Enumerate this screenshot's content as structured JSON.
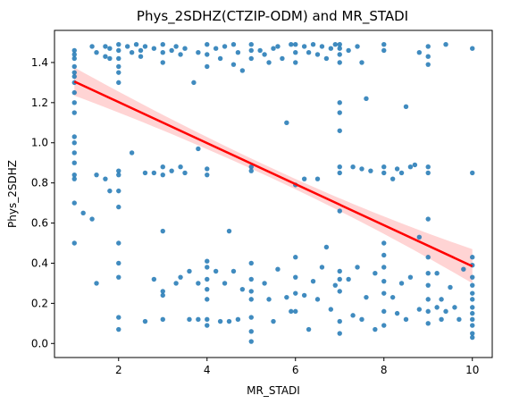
{
  "chart_data": {
    "type": "scatter",
    "title": "Phys_2SDHZ(CTZIP-ODM) and MR_STADI",
    "xlabel": "MR_STADI",
    "ylabel": "Phys_2SDHZ",
    "xlim": [
      0.55,
      10.45
    ],
    "ylim": [
      -0.07,
      1.56
    ],
    "x_ticks": [
      2,
      4,
      6,
      8,
      10
    ],
    "y_ticks": [
      0.0,
      0.2,
      0.4,
      0.6,
      0.8,
      1.0,
      1.2,
      1.4
    ],
    "grid": false,
    "point_color": "#1f77b4",
    "regression": {
      "color": "#ff0000",
      "band_color": "#ffcccc",
      "x": [
        1,
        10
      ],
      "y": [
        1.305,
        0.385
      ],
      "ci_half_width_start": 0.07,
      "ci_half_width_mid": 0.025,
      "ci_half_width_end": 0.085
    },
    "points": [
      [
        1,
        1.46
      ],
      [
        1,
        1.44
      ],
      [
        1,
        1.42
      ],
      [
        1,
        1.38
      ],
      [
        1,
        1.35
      ],
      [
        1,
        1.33
      ],
      [
        1,
        1.3
      ],
      [
        1,
        1.25
      ],
      [
        1,
        1.2
      ],
      [
        1,
        1.15
      ],
      [
        1,
        1.03
      ],
      [
        1,
        1.0
      ],
      [
        1,
        0.95
      ],
      [
        1,
        0.9
      ],
      [
        1,
        0.84
      ],
      [
        1,
        0.82
      ],
      [
        1,
        0.7
      ],
      [
        1,
        0.5
      ],
      [
        1.2,
        0.65
      ],
      [
        1.4,
        1.48
      ],
      [
        1.4,
        0.62
      ],
      [
        1.5,
        1.45
      ],
      [
        1.5,
        0.84
      ],
      [
        1.5,
        0.3
      ],
      [
        1.7,
        1.48
      ],
      [
        1.7,
        1.43
      ],
      [
        1.7,
        0.82
      ],
      [
        1.8,
        1.47
      ],
      [
        1.8,
        1.42
      ],
      [
        1.8,
        0.76
      ],
      [
        2,
        1.49
      ],
      [
        2,
        1.46
      ],
      [
        2,
        1.42
      ],
      [
        2,
        1.38
      ],
      [
        2,
        1.35
      ],
      [
        2,
        1.3
      ],
      [
        2,
        0.86
      ],
      [
        2,
        0.84
      ],
      [
        2,
        0.76
      ],
      [
        2,
        0.68
      ],
      [
        2,
        0.5
      ],
      [
        2,
        0.4
      ],
      [
        2,
        0.33
      ],
      [
        2,
        0.13
      ],
      [
        2,
        0.07
      ],
      [
        2.2,
        1.48
      ],
      [
        2.3,
        1.45
      ],
      [
        2.3,
        0.95
      ],
      [
        2.4,
        1.49
      ],
      [
        2.5,
        1.46
      ],
      [
        2.5,
        1.43
      ],
      [
        2.6,
        1.48
      ],
      [
        2.6,
        0.85
      ],
      [
        2.6,
        0.11
      ],
      [
        2.8,
        1.47
      ],
      [
        2.8,
        0.85
      ],
      [
        2.8,
        0.32
      ],
      [
        3,
        1.49
      ],
      [
        3,
        1.45
      ],
      [
        3,
        1.4
      ],
      [
        3,
        0.88
      ],
      [
        3,
        0.84
      ],
      [
        3,
        0.56
      ],
      [
        3,
        0.26
      ],
      [
        3,
        0.24
      ],
      [
        3,
        0.12
      ],
      [
        3.2,
        1.46
      ],
      [
        3.2,
        0.86
      ],
      [
        3.3,
        1.48
      ],
      [
        3.3,
        0.3
      ],
      [
        3.4,
        1.44
      ],
      [
        3.4,
        0.88
      ],
      [
        3.4,
        0.33
      ],
      [
        3.5,
        1.47
      ],
      [
        3.5,
        0.85
      ],
      [
        3.6,
        0.36
      ],
      [
        3.6,
        0.12
      ],
      [
        3.7,
        1.3
      ],
      [
        3.8,
        1.45
      ],
      [
        3.8,
        0.97
      ],
      [
        3.8,
        0.3
      ],
      [
        3.8,
        0.12
      ],
      [
        4,
        1.49
      ],
      [
        4,
        1.44
      ],
      [
        4,
        1.38
      ],
      [
        4,
        0.87
      ],
      [
        4,
        0.84
      ],
      [
        4,
        0.41
      ],
      [
        4,
        0.38
      ],
      [
        4,
        0.32
      ],
      [
        4,
        0.27
      ],
      [
        4,
        0.22
      ],
      [
        4,
        0.12
      ],
      [
        4,
        0.09
      ],
      [
        4.2,
        1.47
      ],
      [
        4.2,
        0.36
      ],
      [
        4.3,
        1.42
      ],
      [
        4.3,
        0.11
      ],
      [
        4.4,
        1.48
      ],
      [
        4.4,
        0.3
      ],
      [
        4.5,
        0.11
      ],
      [
        4.5,
        0.56
      ],
      [
        4.6,
        1.49
      ],
      [
        4.6,
        1.39
      ],
      [
        4.6,
        0.36
      ],
      [
        4.7,
        1.45
      ],
      [
        4.7,
        0.12
      ],
      [
        4.8,
        1.36
      ],
      [
        4.8,
        0.27
      ],
      [
        5,
        1.49
      ],
      [
        5,
        1.46
      ],
      [
        5,
        1.42
      ],
      [
        5,
        0.88
      ],
      [
        5,
        0.86
      ],
      [
        5,
        0.4
      ],
      [
        5,
        0.32
      ],
      [
        5,
        0.26
      ],
      [
        5,
        0.22
      ],
      [
        5,
        0.13
      ],
      [
        5,
        0.06
      ],
      [
        5,
        0.01
      ],
      [
        5.2,
        1.46
      ],
      [
        5.3,
        1.44
      ],
      [
        5.3,
        0.3
      ],
      [
        5.4,
        1.4
      ],
      [
        5.4,
        0.22
      ],
      [
        5.5,
        1.47
      ],
      [
        5.5,
        0.11
      ],
      [
        5.6,
        1.48
      ],
      [
        5.6,
        0.37
      ],
      [
        5.7,
        1.42
      ],
      [
        5.8,
        1.1
      ],
      [
        5.8,
        0.23
      ],
      [
        5.9,
        1.49
      ],
      [
        5.9,
        0.16
      ],
      [
        6,
        1.49
      ],
      [
        6,
        1.45
      ],
      [
        6,
        1.4
      ],
      [
        6,
        0.79
      ],
      [
        6,
        0.43
      ],
      [
        6,
        0.33
      ],
      [
        6,
        0.25
      ],
      [
        6,
        0.16
      ],
      [
        6.2,
        1.48
      ],
      [
        6.2,
        0.82
      ],
      [
        6.2,
        0.24
      ],
      [
        6.3,
        1.45
      ],
      [
        6.3,
        0.07
      ],
      [
        6.4,
        1.49
      ],
      [
        6.4,
        0.31
      ],
      [
        6.5,
        1.44
      ],
      [
        6.5,
        0.82
      ],
      [
        6.5,
        0.22
      ],
      [
        6.6,
        1.48
      ],
      [
        6.6,
        0.38
      ],
      [
        6.7,
        1.42
      ],
      [
        6.7,
        0.48
      ],
      [
        6.8,
        1.47
      ],
      [
        6.8,
        0.17
      ],
      [
        6.9,
        1.49
      ],
      [
        6.9,
        0.29
      ],
      [
        7,
        1.49
      ],
      [
        7,
        1.47
      ],
      [
        7,
        1.44
      ],
      [
        7,
        1.4
      ],
      [
        7,
        1.2
      ],
      [
        7,
        1.15
      ],
      [
        7,
        1.06
      ],
      [
        7,
        0.88
      ],
      [
        7,
        0.85
      ],
      [
        7,
        0.66
      ],
      [
        7,
        0.36
      ],
      [
        7,
        0.32
      ],
      [
        7,
        0.26
      ],
      [
        7,
        0.11
      ],
      [
        7,
        0.05
      ],
      [
        7.2,
        1.46
      ],
      [
        7.2,
        0.32
      ],
      [
        7.3,
        0.88
      ],
      [
        7.3,
        0.14
      ],
      [
        7.4,
        1.48
      ],
      [
        7.4,
        0.38
      ],
      [
        7.5,
        1.4
      ],
      [
        7.5,
        0.87
      ],
      [
        7.5,
        0.12
      ],
      [
        7.6,
        1.22
      ],
      [
        7.6,
        0.23
      ],
      [
        7.7,
        0.86
      ],
      [
        7.8,
        0.35
      ],
      [
        7.8,
        0.07
      ],
      [
        8,
        1.49
      ],
      [
        8,
        1.46
      ],
      [
        8,
        0.88
      ],
      [
        8,
        0.85
      ],
      [
        8,
        0.5
      ],
      [
        8,
        0.44
      ],
      [
        8,
        0.38
      ],
      [
        8,
        0.31
      ],
      [
        8,
        0.25
      ],
      [
        8,
        0.16
      ],
      [
        8,
        0.09
      ],
      [
        8.2,
        0.82
      ],
      [
        8.2,
        0.23
      ],
      [
        8.3,
        0.87
      ],
      [
        8.3,
        0.15
      ],
      [
        8.4,
        0.85
      ],
      [
        8.4,
        0.3
      ],
      [
        8.5,
        1.18
      ],
      [
        8.5,
        0.12
      ],
      [
        8.6,
        0.88
      ],
      [
        8.6,
        0.33
      ],
      [
        8.7,
        0.89
      ],
      [
        8.8,
        1.45
      ],
      [
        8.8,
        0.17
      ],
      [
        8.8,
        0.53
      ],
      [
        9,
        1.48
      ],
      [
        9,
        1.43
      ],
      [
        9,
        1.39
      ],
      [
        9,
        0.88
      ],
      [
        9,
        0.85
      ],
      [
        9,
        0.62
      ],
      [
        9,
        0.43
      ],
      [
        9,
        0.35
      ],
      [
        9,
        0.29
      ],
      [
        9,
        0.22
      ],
      [
        9,
        0.16
      ],
      [
        9,
        0.1
      ],
      [
        9.2,
        0.35
      ],
      [
        9.2,
        0.18
      ],
      [
        9.3,
        0.22
      ],
      [
        9.3,
        0.12
      ],
      [
        9.4,
        1.49
      ],
      [
        9.4,
        0.16
      ],
      [
        9.5,
        0.28
      ],
      [
        9.6,
        0.18
      ],
      [
        9.7,
        0.12
      ],
      [
        9.8,
        0.37
      ],
      [
        10,
        1.47
      ],
      [
        10,
        0.85
      ],
      [
        10,
        0.43
      ],
      [
        10,
        0.39
      ],
      [
        10,
        0.33
      ],
      [
        10,
        0.29
      ],
      [
        10,
        0.25
      ],
      [
        10,
        0.22
      ],
      [
        10,
        0.18
      ],
      [
        10,
        0.15
      ],
      [
        10,
        0.12
      ],
      [
        10,
        0.09
      ],
      [
        10,
        0.05
      ],
      [
        10,
        0.03
      ]
    ]
  }
}
